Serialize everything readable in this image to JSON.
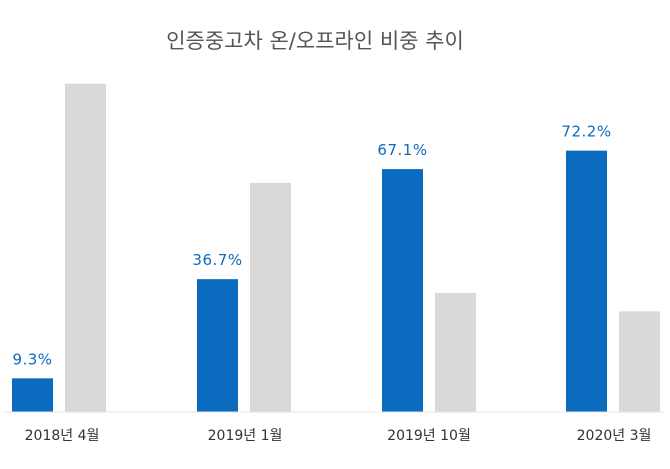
{
  "chart_data": {
    "type": "bar",
    "title": "인증중고차 온/오프라인 비중 추이",
    "categories": [
      "2018년 4월",
      "2019년 1월",
      "2019년 10월",
      "2020년 3월"
    ],
    "series": [
      {
        "values": [
          9.3,
          36.7,
          67.1,
          72.2
        ],
        "color": "#0a6bbf",
        "data_labels": [
          "9.3%",
          "36.7%",
          "67.1%",
          "72.2%"
        ]
      },
      {
        "values": [
          90.7,
          63.3,
          32.9,
          27.8
        ],
        "color": "#d9d9d9"
      }
    ],
    "xlabel": "",
    "ylabel": "",
    "ylim": [
      0,
      100
    ],
    "grid": false,
    "legend": "none",
    "label_color": "#0a6bbf"
  }
}
